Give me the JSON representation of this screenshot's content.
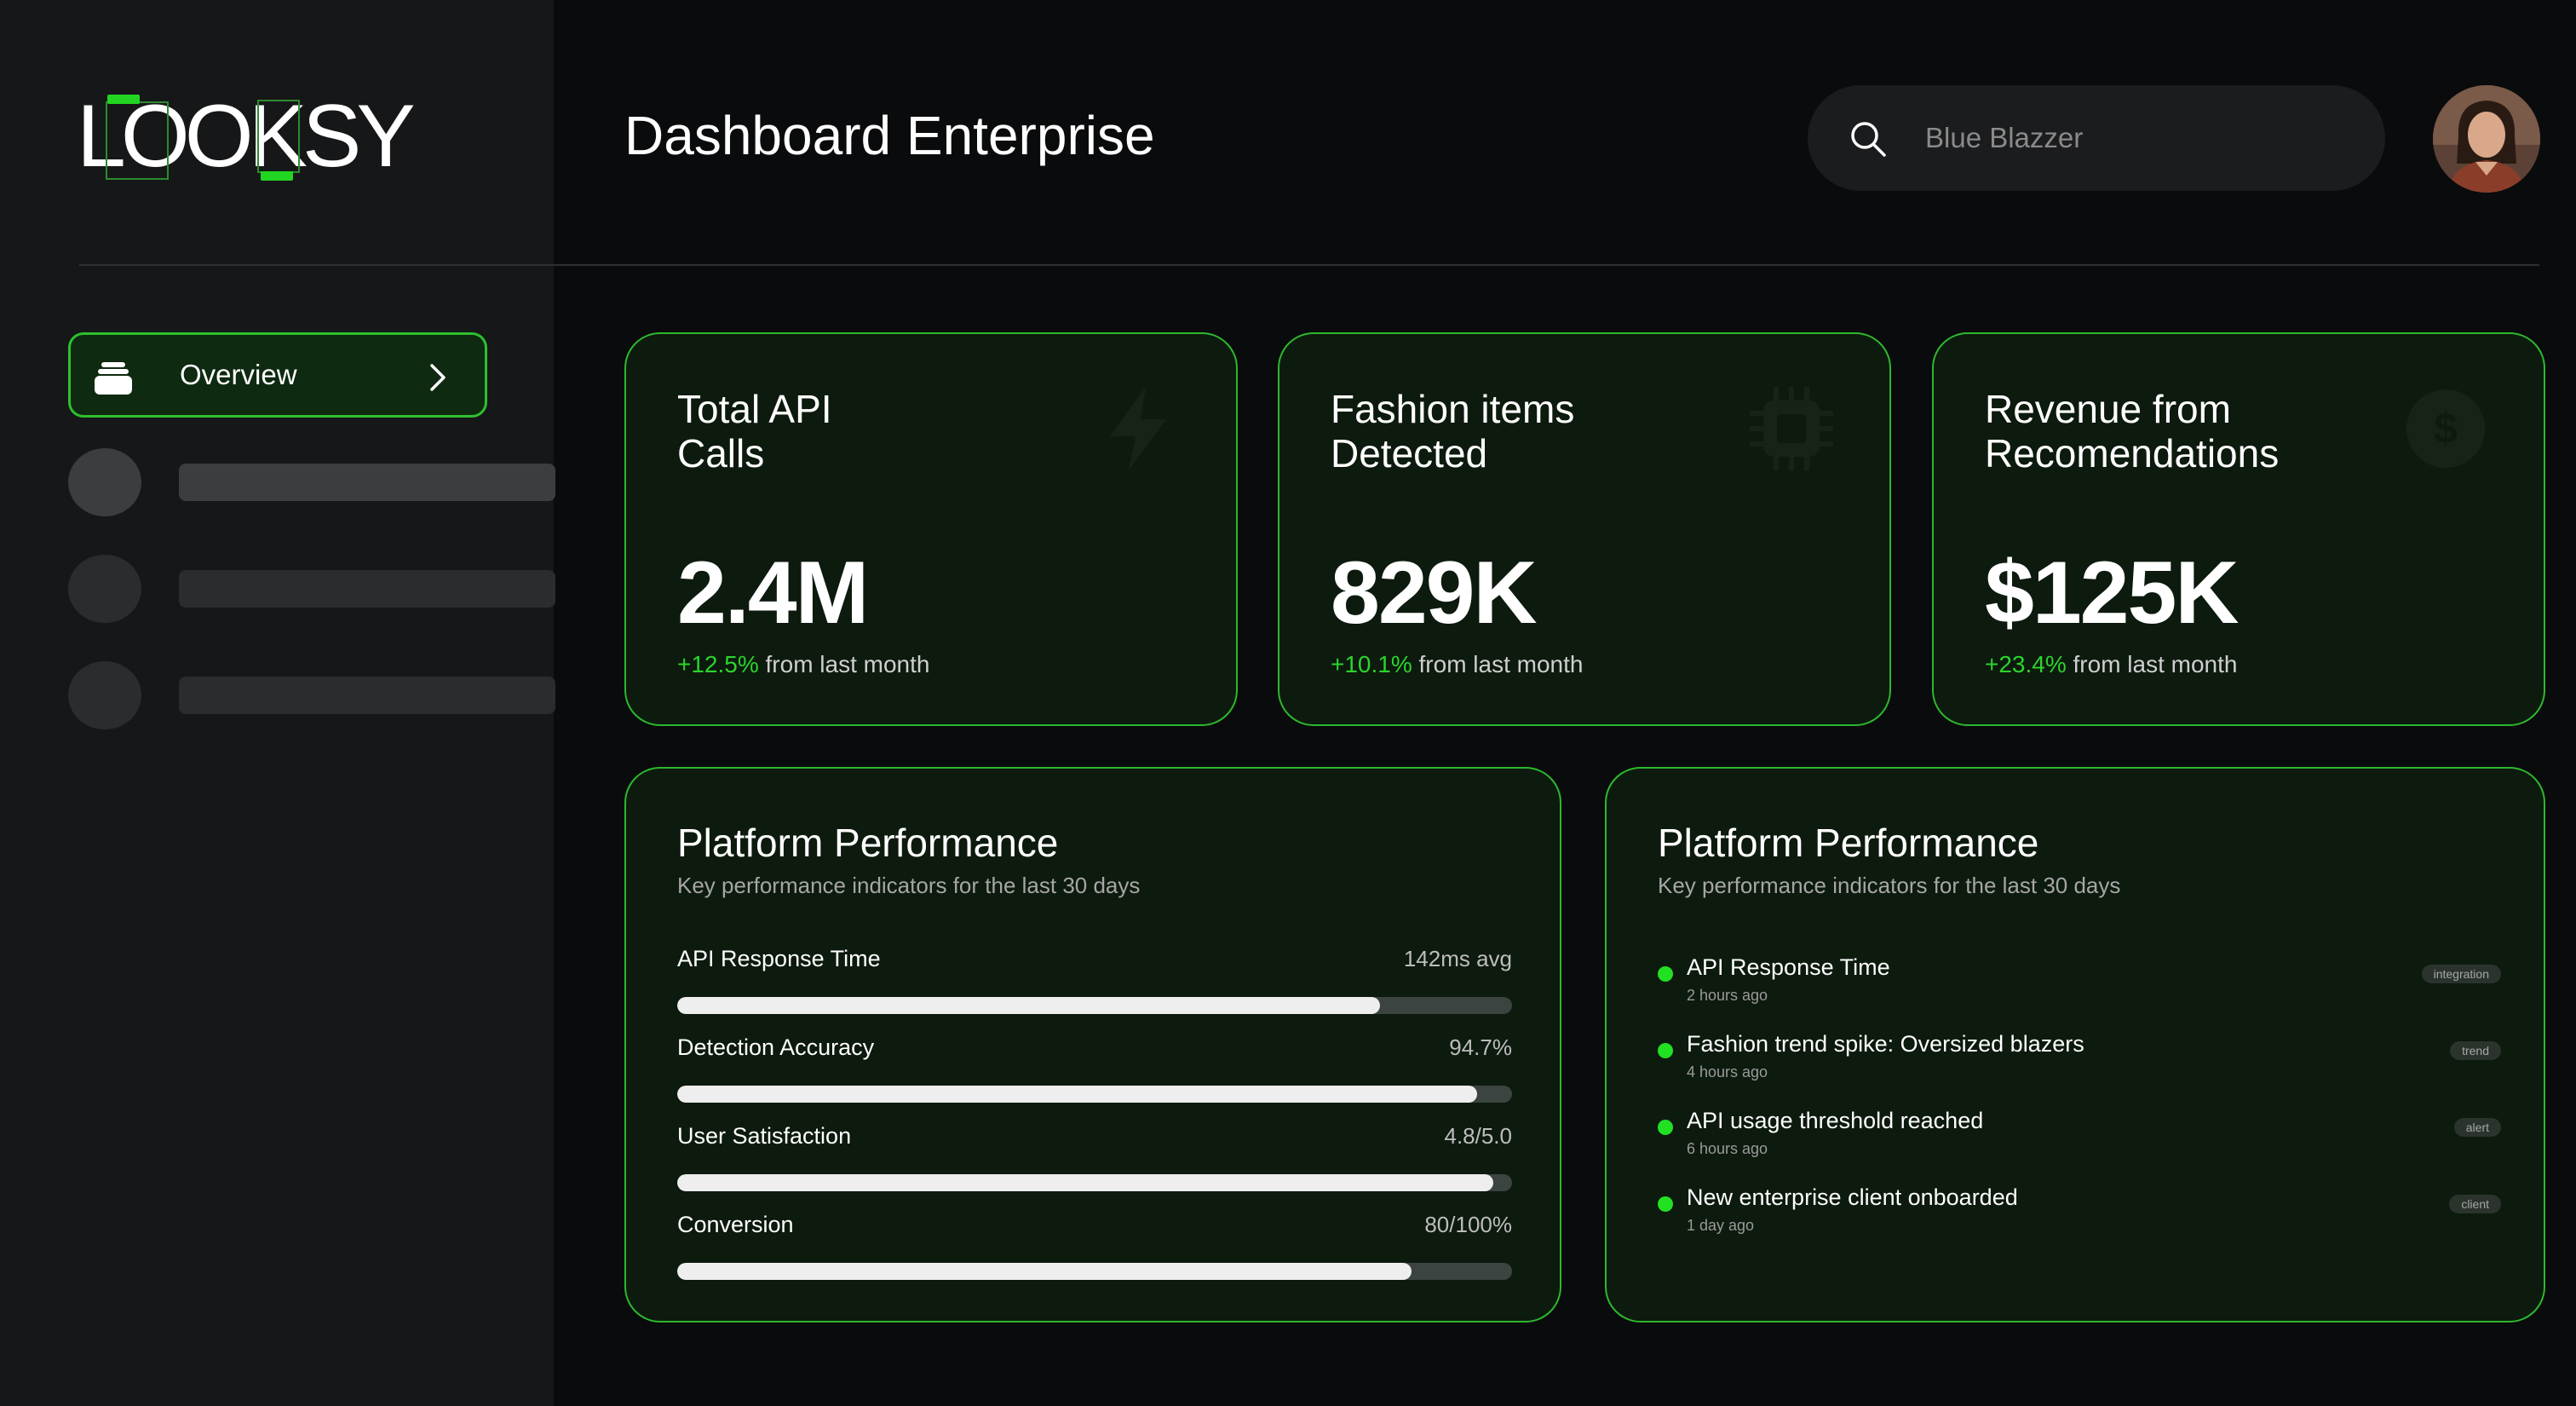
{
  "app": {
    "logo_text": "LOOKSY",
    "page_title": "Dashboard Enterprise"
  },
  "sidebar": {
    "active_item": {
      "label": "Overview",
      "icon": "stack-icon"
    }
  },
  "search": {
    "placeholder": "Blue Blazzer",
    "value": ""
  },
  "stats": [
    {
      "title": "Total API\nCalls",
      "value": "2.4M",
      "delta": "+12.5%",
      "delta_text": "from last month",
      "icon": "bolt-icon"
    },
    {
      "title": "Fashion items\nDetected",
      "value": "829K",
      "delta": "+10.1%",
      "delta_text": "from last month",
      "icon": "chip-icon"
    },
    {
      "title": "Revenue from\nRecomendations",
      "value": "$125K",
      "delta": "+23.4%",
      "delta_text": "from last month",
      "icon": "dollar-icon"
    }
  ],
  "performance": {
    "title": "Platform Performance",
    "subtitle": "Key performance indicators for the last 30 days",
    "metrics": [
      {
        "label": "API Response Time",
        "value": "142ms avg",
        "fill": 0.842
      },
      {
        "label": "Detection Accuracy",
        "value": "94.7%",
        "fill": 0.958
      },
      {
        "label": "User Satisfaction",
        "value": "4.8/5.0",
        "fill": 0.978
      },
      {
        "label": "Conversion",
        "value": "80/100%",
        "fill": 0.88
      }
    ]
  },
  "activity": {
    "title": "Platform Performance",
    "subtitle": "Key performance indicators for the last 30 days",
    "items": [
      {
        "title": "API Response Time",
        "time": "2 hours ago",
        "tag": "integration"
      },
      {
        "title": "Fashion trend spike: Oversized blazers",
        "time": "4 hours ago",
        "tag": "trend"
      },
      {
        "title": "API usage threshold reached",
        "time": "6 hours ago",
        "tag": "alert"
      },
      {
        "title": "New enterprise client onboarded",
        "time": "1 day ago",
        "tag": "client"
      }
    ]
  },
  "colors": {
    "accent": "#2db82d",
    "positive": "#2bd42b",
    "card_bg": "#0d1a0e",
    "sidebar_bg": "#161718",
    "page_bg": "#0a0b0c"
  }
}
